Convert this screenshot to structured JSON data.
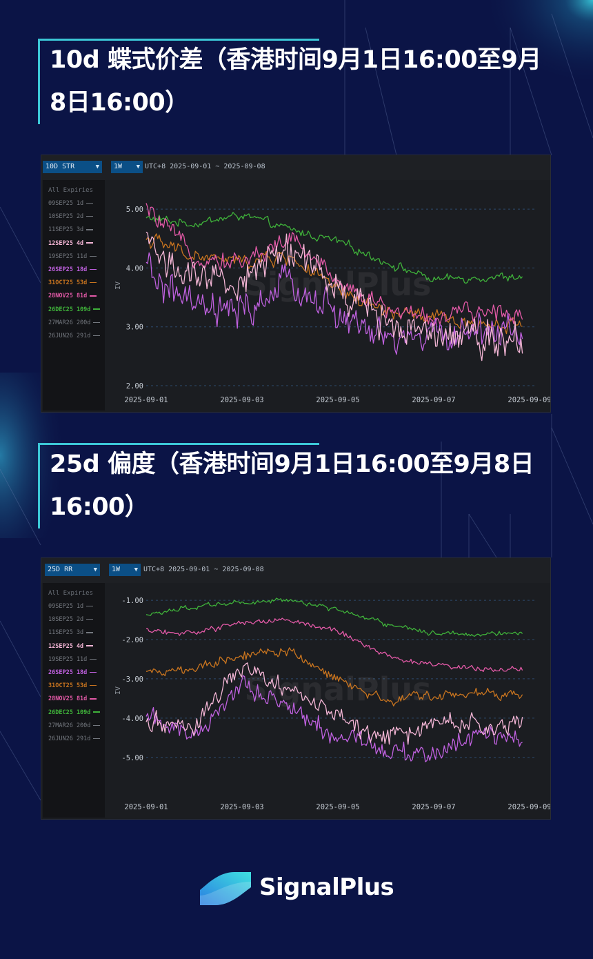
{
  "headings": {
    "h1": "10d 蝶式价差（香港时间9月1日16:00至9月8日16:00）",
    "h2": "25d 偏度（香港时间9月1日16:00至9月8日16:00）"
  },
  "brand": {
    "name": "SignalPlus",
    "accent": "#3cc7d6",
    "background": "#0b1446"
  },
  "legend": {
    "title": "All Expiries",
    "items": [
      {
        "label": "09SEP25 1d",
        "color": "#6b6f76",
        "active": false
      },
      {
        "label": "10SEP25 2d",
        "color": "#6b6f76",
        "active": false
      },
      {
        "label": "11SEP25 3d",
        "color": "#6b6f76",
        "active": false
      },
      {
        "label": "12SEP25 4d",
        "color": "#f4b6d6",
        "active": true
      },
      {
        "label": "19SEP25 11d",
        "color": "#6b6f76",
        "active": false
      },
      {
        "label": "26SEP25 18d",
        "color": "#c061e0",
        "active": true
      },
      {
        "label": "31OCT25 53d",
        "color": "#c8741f",
        "active": true
      },
      {
        "label": "28NOV25 81d",
        "color": "#e45aa8",
        "active": true
      },
      {
        "label": "26DEC25 109d",
        "color": "#3fb23a",
        "active": true
      },
      {
        "label": "27MAR26 200d",
        "color": "#6b6f76",
        "active": false
      },
      {
        "label": "26JUN26 291d",
        "color": "#6b6f76",
        "active": false
      }
    ]
  },
  "chart_data": [
    {
      "type": "line",
      "metric_select": "10D STR",
      "period_select": "1W",
      "range_text": "UTC+8 2025-09-01 ~ 2025-09-08",
      "watermark": "SignalPlus",
      "ylabel": "IV",
      "ylim": [
        2.0,
        5.4
      ],
      "yticks": [
        2.0,
        3.0,
        4.0,
        5.0
      ],
      "ytick_labels": [
        "2.00",
        "3.00",
        "4.00",
        "5.00"
      ],
      "xlim": [
        "2025-09-01",
        "2025-09-09"
      ],
      "xtick_labels": [
        "2025-09-01",
        "2025-09-03",
        "2025-09-05",
        "2025-09-07",
        "2025-09-09"
      ],
      "x_dates": [
        "2025-09-01",
        "2025-09-02",
        "2025-09-03",
        "2025-09-04",
        "2025-09-05",
        "2025-09-06",
        "2025-09-07",
        "2025-09-08"
      ],
      "series": [
        {
          "name": "26DEC25 109d",
          "color": "#3fb23a",
          "noise": 0.07,
          "values": [
            4.85,
            4.75,
            4.9,
            4.65,
            4.45,
            4.1,
            3.8,
            3.85
          ]
        },
        {
          "name": "31OCT25 53d",
          "color": "#c8741f",
          "noise": 0.12,
          "values": [
            4.5,
            4.2,
            4.1,
            4.2,
            3.6,
            3.25,
            3.15,
            3.05
          ]
        },
        {
          "name": "28NOV25 81d",
          "color": "#e45aa8",
          "noise": 0.15,
          "values": [
            5.0,
            4.2,
            4.1,
            4.5,
            3.8,
            3.3,
            3.15,
            3.25
          ]
        },
        {
          "name": "26SEP25 18d",
          "color": "#c061e0",
          "noise": 0.28,
          "values": [
            3.95,
            3.3,
            3.2,
            3.75,
            3.2,
            2.75,
            2.85,
            2.95
          ]
        },
        {
          "name": "12SEP25 4d",
          "color": "#f4b6d6",
          "noise": 0.3,
          "values": [
            4.5,
            3.7,
            3.8,
            4.4,
            3.6,
            3.1,
            3.0,
            2.85
          ]
        }
      ]
    },
    {
      "type": "line",
      "metric_select": "25D RR",
      "period_select": "1W",
      "range_text": "UTC+8 2025-09-01 ~ 2025-09-08",
      "watermark": "SignalPlus",
      "ylabel": "IV",
      "ylim": [
        -5.9,
        -0.7
      ],
      "yticks": [
        -1.0,
        -2.0,
        -3.0,
        -4.0,
        -5.0
      ],
      "ytick_labels": [
        "-1.00",
        "-2.00",
        "-3.00",
        "-4.00",
        "-5.00"
      ],
      "xlim": [
        "2025-09-01",
        "2025-09-09"
      ],
      "xtick_labels": [
        "2025-09-01",
        "2025-09-03",
        "2025-09-05",
        "2025-09-07",
        "2025-09-09"
      ],
      "x_dates": [
        "2025-09-01",
        "2025-09-02",
        "2025-09-03",
        "2025-09-04",
        "2025-09-05",
        "2025-09-06",
        "2025-09-07",
        "2025-09-08"
      ],
      "series": [
        {
          "name": "26DEC25 109d",
          "color": "#3fb23a",
          "noise": 0.06,
          "values": [
            -1.4,
            -1.15,
            -1.05,
            -1.0,
            -1.25,
            -1.6,
            -1.85,
            -1.85
          ]
        },
        {
          "name": "28NOV25 81d",
          "color": "#e45aa8",
          "noise": 0.07,
          "values": [
            -1.75,
            -1.85,
            -1.55,
            -1.5,
            -1.8,
            -2.4,
            -2.65,
            -2.75
          ]
        },
        {
          "name": "31OCT25 53d",
          "color": "#c8741f",
          "noise": 0.12,
          "values": [
            -2.85,
            -2.75,
            -2.4,
            -2.3,
            -3.0,
            -3.55,
            -3.45,
            -3.4
          ]
        },
        {
          "name": "26SEP25 18d",
          "color": "#c061e0",
          "noise": 0.25,
          "values": [
            -4.0,
            -4.4,
            -3.2,
            -3.7,
            -4.5,
            -4.9,
            -4.95,
            -4.5
          ]
        },
        {
          "name": "12SEP25 4d",
          "color": "#f4b6d6",
          "noise": 0.25,
          "values": [
            -4.1,
            -4.2,
            -2.7,
            -3.2,
            -4.0,
            -4.6,
            -4.2,
            -4.1
          ]
        }
      ]
    }
  ]
}
